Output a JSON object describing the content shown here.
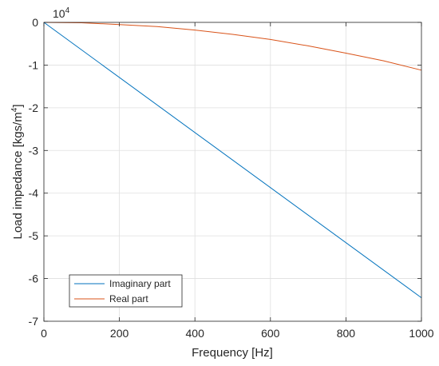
{
  "chart_data": {
    "type": "line",
    "xlabel": "Frequency [Hz]",
    "ylabel": "Load impedance [kgs/m",
    "ylabel_superscript": "4",
    "ylabel_suffix": "]",
    "y_multiplier_base": "10",
    "y_multiplier_exponent": "4",
    "xlim": [
      0,
      1000
    ],
    "ylim": [
      -7,
      0
    ],
    "xticks": [
      0,
      200,
      400,
      600,
      800,
      1000
    ],
    "yticks": [
      0,
      -1,
      -2,
      -3,
      -4,
      -5,
      -6,
      -7
    ],
    "grid": true,
    "legend_position": "bottom-left",
    "series": [
      {
        "name": "Imaginary part",
        "color": "#0072BD",
        "x": [
          0,
          1000
        ],
        "y": [
          0,
          -6.45
        ]
      },
      {
        "name": "Real part",
        "color": "#D95319",
        "x": [
          0,
          100,
          200,
          300,
          400,
          500,
          600,
          700,
          800,
          900,
          1000
        ],
        "y": [
          0,
          -0.01,
          -0.05,
          -0.1,
          -0.18,
          -0.28,
          -0.4,
          -0.55,
          -0.72,
          -0.9,
          -1.12
        ]
      }
    ]
  }
}
